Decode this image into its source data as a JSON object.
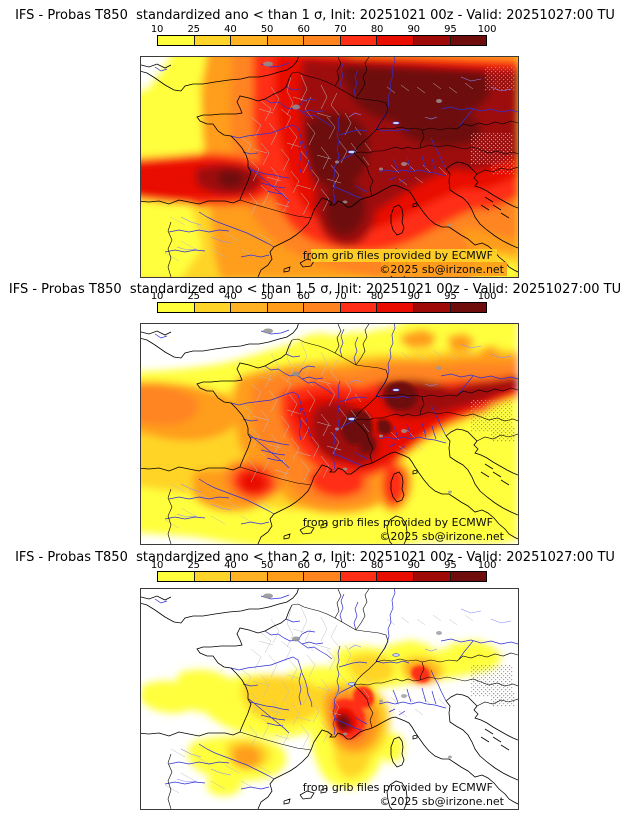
{
  "panels": [
    {
      "title": "IFS - Probas T850  standardized ano < than 1 σ, Init: 20251021 00z - Valid: 20251027:00 TU"
    },
    {
      "title": "IFS - Probas T850  standardized ano < than 1.5 σ, Init: 20251021 00z - Valid: 20251027:00 TU"
    },
    {
      "title": "IFS - Probas T850  standardized ano < than 2 σ, Init: 20251021 00z - Valid: 20251027:00 TU"
    }
  ],
  "colorbar": {
    "ticks": [
      "10",
      "25",
      "40",
      "50",
      "60",
      "70",
      "80",
      "90",
      "95",
      "100"
    ],
    "colors": [
      "#FFFF3C",
      "#FFD428",
      "#FFB224",
      "#FF9D1B",
      "#FF8420",
      "#FF2E16",
      "#E80D00",
      "#9E0A08",
      "#6E0D0B"
    ]
  },
  "attribution": {
    "provider": "from grib files provided by ECMWF",
    "copyright": "©2025 sb@irizone.net"
  }
}
